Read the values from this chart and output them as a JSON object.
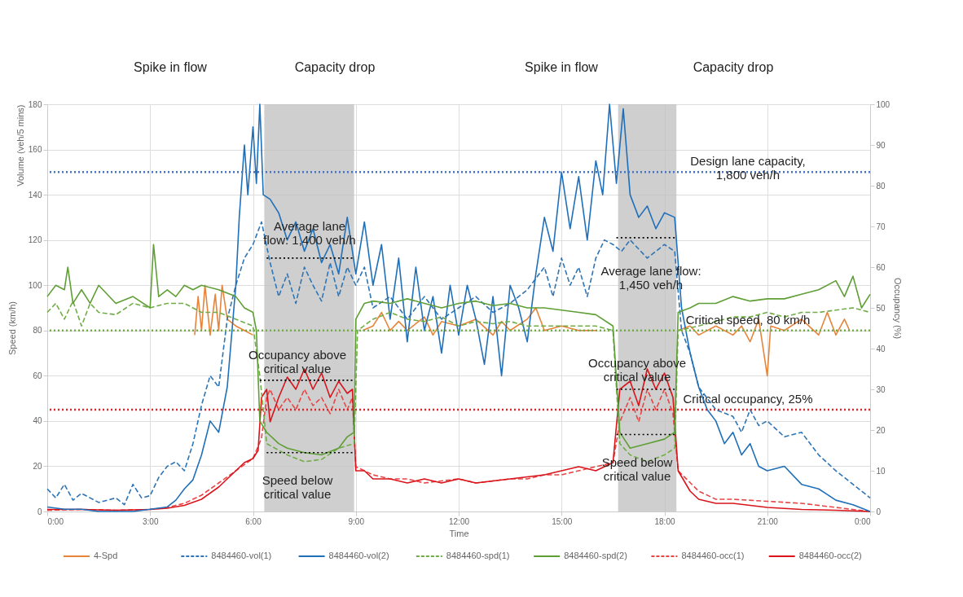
{
  "chart_data": {
    "type": "line",
    "xlabel": "Time",
    "ylabel": "Volume (veh/5 mins)",
    "y2label": "Occupancy (%)",
    "xlim": [
      0,
      24
    ],
    "xticks": [
      {
        "value": 0,
        "label": "0:00"
      },
      {
        "value": 3,
        "label": "3:00"
      },
      {
        "value": 6,
        "label": "6:00"
      },
      {
        "value": 9,
        "label": "9:00"
      },
      {
        "value": 12,
        "label": "12:00"
      },
      {
        "value": 15,
        "label": "15:00"
      },
      {
        "value": 18,
        "label": "18:00"
      },
      {
        "value": 21,
        "label": "21:00"
      },
      {
        "value": 24,
        "label": "0:00"
      }
    ],
    "ylim": [
      0,
      180
    ],
    "yticks": [
      0,
      20,
      40,
      60,
      80,
      100,
      120,
      140,
      160,
      180
    ],
    "y2lim": [
      0,
      100
    ],
    "y2ticks": [
      0,
      10,
      20,
      30,
      40,
      50,
      60,
      70,
      80,
      90,
      100
    ],
    "grid": true,
    "legend": "bottom",
    "series": [
      {
        "name": "4-Spd",
        "color": "#e8843a",
        "line_style": "solid",
        "x": [
          4.3,
          4.4,
          4.5,
          4.6,
          4.75,
          4.9,
          5,
          5.1,
          5.25,
          5.5,
          5.75,
          6,
          6.05,
          9.15,
          9.2,
          9.5,
          9.75,
          10,
          10.25,
          10.5,
          11,
          11.25,
          11.5,
          12,
          12.5,
          13,
          13.25,
          13.5,
          14,
          14.25,
          14.5,
          15,
          15.5,
          16,
          16.05,
          18.35,
          18.4,
          18.75,
          19,
          19.5,
          20,
          20.25,
          20.5,
          20.75,
          21,
          21.1,
          21.5,
          22,
          22.5,
          22.75,
          23,
          23.25,
          23.4
        ],
        "values": [
          78,
          95,
          80,
          100,
          78,
          96,
          80,
          100,
          85,
          82,
          80,
          78,
          null,
          null,
          80,
          82,
          88,
          80,
          84,
          80,
          86,
          78,
          84,
          82,
          85,
          78,
          84,
          80,
          85,
          90,
          80,
          82,
          80,
          80,
          null,
          null,
          80,
          82,
          78,
          82,
          78,
          82,
          75,
          85,
          60,
          82,
          80,
          85,
          78,
          88,
          78,
          85,
          80
        ]
      },
      {
        "name": "8484460-vol(1)",
        "color": "#2e75b6",
        "line_style": "dashed",
        "x": [
          0,
          0.25,
          0.5,
          0.75,
          1,
          1.5,
          2,
          2.25,
          2.5,
          2.75,
          3,
          3.25,
          3.5,
          3.75,
          4,
          4.25,
          4.5,
          4.75,
          5,
          5.25,
          5.5,
          5.75,
          6,
          6.25,
          6.5,
          6.75,
          7,
          7.25,
          7.5,
          7.75,
          8,
          8.25,
          8.5,
          8.75,
          9,
          9.25,
          9.5,
          10,
          10.5,
          11,
          11.5,
          12,
          12.5,
          13,
          13.5,
          14,
          14.5,
          14.75,
          15,
          15.25,
          15.5,
          15.75,
          16,
          16.25,
          16.5,
          16.75,
          17,
          17.5,
          18,
          18.3,
          18.5,
          18.75,
          19,
          19.25,
          19.5,
          20,
          20.25,
          20.5,
          20.75,
          21,
          21.5,
          22,
          22.5,
          23,
          23.5,
          24
        ],
        "values": [
          10,
          6,
          12,
          5,
          8,
          4,
          6,
          3,
          12,
          6,
          7,
          15,
          20,
          22,
          18,
          30,
          47,
          60,
          55,
          85,
          100,
          112,
          118,
          128,
          110,
          95,
          105,
          92,
          108,
          100,
          93,
          110,
          95,
          108,
          100,
          108,
          90,
          95,
          85,
          95,
          85,
          90,
          95,
          88,
          92,
          98,
          108,
          95,
          112,
          100,
          108,
          95,
          112,
          120,
          118,
          115,
          120,
          112,
          118,
          115,
          80,
          70,
          55,
          50,
          45,
          42,
          35,
          45,
          38,
          40,
          33,
          35,
          25,
          18,
          12,
          6
        ]
      },
      {
        "name": "8484460-vol(2)",
        "color": "#1f6fb9",
        "line_style": "solid",
        "x": [
          0,
          0.5,
          1,
          1.5,
          2,
          2.5,
          3,
          3.5,
          3.75,
          4,
          4.25,
          4.5,
          4.75,
          5,
          5.25,
          5.5,
          5.6,
          5.75,
          5.85,
          6,
          6.1,
          6.2,
          6.3,
          6.5,
          6.75,
          7,
          7.25,
          7.5,
          7.75,
          8,
          8.25,
          8.5,
          8.75,
          9,
          9.25,
          9.5,
          9.75,
          10,
          10.25,
          10.5,
          10.75,
          11,
          11.25,
          11.5,
          11.75,
          12,
          12.25,
          12.5,
          12.75,
          13,
          13.25,
          13.5,
          13.75,
          14,
          14.25,
          14.5,
          14.75,
          15,
          15.25,
          15.5,
          15.75,
          16,
          16.2,
          16.4,
          16.6,
          16.8,
          17,
          17.25,
          17.5,
          17.75,
          18,
          18.3,
          18.5,
          18.75,
          19,
          19.25,
          19.5,
          19.75,
          20,
          20.25,
          20.5,
          20.75,
          21,
          21.5,
          22,
          22.5,
          23,
          23.5,
          24
        ],
        "values": [
          2,
          1,
          1,
          0,
          0,
          0,
          1,
          2,
          5,
          10,
          14,
          25,
          40,
          35,
          55,
          100,
          130,
          162,
          140,
          170,
          145,
          180,
          140,
          138,
          132,
          120,
          128,
          115,
          125,
          110,
          118,
          105,
          130,
          105,
          128,
          100,
          118,
          85,
          112,
          75,
          108,
          80,
          95,
          70,
          100,
          78,
          100,
          85,
          65,
          95,
          60,
          100,
          90,
          75,
          105,
          130,
          115,
          150,
          125,
          148,
          120,
          155,
          140,
          180,
          145,
          178,
          140,
          130,
          135,
          125,
          132,
          130,
          90,
          70,
          55,
          45,
          40,
          30,
          35,
          25,
          30,
          20,
          18,
          20,
          12,
          10,
          5,
          3,
          0
        ]
      },
      {
        "name": "8484460-spd(1)",
        "color": "#70ad47",
        "line_style": "dashed",
        "x": [
          0,
          0.25,
          0.5,
          0.75,
          1,
          1.25,
          1.5,
          2,
          2.5,
          3,
          3.5,
          4,
          4.5,
          5,
          5.5,
          6,
          6.2,
          6.4,
          7,
          7.5,
          8,
          8.5,
          8.95,
          9.05,
          9.5,
          10,
          10.5,
          11,
          11.5,
          12,
          12.5,
          13,
          13.5,
          14,
          14.5,
          15,
          15.5,
          16,
          16.5,
          16.7,
          17,
          17.5,
          18,
          18.3,
          18.4,
          19,
          19.5,
          20,
          20.5,
          21,
          21.5,
          22,
          22.5,
          23,
          23.5,
          24
        ],
        "values": [
          88,
          92,
          85,
          93,
          82,
          92,
          88,
          87,
          92,
          90,
          92,
          92,
          88,
          88,
          85,
          82,
          60,
          30,
          25,
          22,
          23,
          28,
          30,
          80,
          85,
          88,
          85,
          84,
          86,
          82,
          84,
          83,
          84,
          82,
          82,
          82,
          82,
          82,
          80,
          30,
          25,
          22,
          25,
          28,
          80,
          82,
          84,
          86,
          86,
          88,
          86,
          88,
          88,
          89,
          90,
          88
        ]
      },
      {
        "name": "8484460-spd(2)",
        "color": "#5e9e35",
        "line_style": "solid",
        "x": [
          0,
          0.25,
          0.5,
          0.6,
          0.75,
          1,
          1.25,
          1.5,
          2,
          2.5,
          3,
          3.1,
          3.25,
          3.5,
          3.75,
          4,
          4.25,
          4.5,
          5,
          5.5,
          5.75,
          6,
          6.1,
          6.2,
          6.4,
          6.75,
          7,
          7.5,
          8,
          8.5,
          8.75,
          8.95,
          9,
          9.25,
          9.5,
          10,
          10.5,
          11,
          11.5,
          12,
          12.5,
          13,
          13.5,
          14,
          14.5,
          15,
          15.5,
          16,
          16.5,
          16.7,
          17,
          17.5,
          18,
          18.3,
          18.4,
          18.75,
          19,
          19.5,
          20,
          20.5,
          21,
          21.5,
          22,
          22.5,
          23,
          23.25,
          23.5,
          23.75,
          24
        ],
        "values": [
          95,
          100,
          98,
          108,
          92,
          98,
          92,
          100,
          92,
          95,
          90,
          118,
          95,
          98,
          95,
          100,
          98,
          100,
          98,
          95,
          90,
          88,
          80,
          40,
          35,
          30,
          28,
          26,
          25,
          28,
          33,
          35,
          85,
          92,
          93,
          92,
          94,
          92,
          90,
          92,
          93,
          91,
          92,
          90,
          90,
          89,
          88,
          87,
          82,
          35,
          28,
          30,
          32,
          35,
          88,
          90,
          92,
          92,
          95,
          93,
          94,
          94,
          96,
          98,
          102,
          95,
          104,
          90,
          96
        ]
      },
      {
        "name": "8484460-occ(1)",
        "color": "#e84545",
        "line_style": "dashed",
        "axis": "y2",
        "x": [
          0,
          1,
          2,
          3,
          3.5,
          4,
          4.5,
          5,
          5.5,
          6,
          6.25,
          6.4,
          6.5,
          6.75,
          7,
          7.25,
          7.5,
          7.75,
          8,
          8.25,
          8.5,
          8.75,
          8.9,
          9,
          9.5,
          10,
          10.5,
          11,
          11.5,
          12,
          12.5,
          13,
          13.5,
          14,
          14.5,
          15,
          15.5,
          16,
          16.5,
          16.7,
          17,
          17.25,
          17.5,
          17.75,
          18,
          18.25,
          18.4,
          19,
          19.5,
          20,
          21,
          22,
          23,
          24
        ],
        "values": [
          0.3,
          0.5,
          0.3,
          0.5,
          1,
          2,
          4,
          7,
          10,
          13,
          18,
          28,
          30,
          25,
          28,
          25,
          30,
          26,
          28,
          24,
          30,
          25,
          28,
          11,
          9,
          8,
          8,
          7,
          7.5,
          8,
          7,
          7.5,
          8,
          8,
          9,
          9,
          10,
          11,
          12,
          22,
          28,
          22,
          30,
          25,
          30,
          24,
          10,
          5,
          3,
          3,
          2.5,
          2,
          1,
          0
        ]
      },
      {
        "name": "8484460-occ(2)",
        "color": "#d9141b",
        "line_style": "solid",
        "axis": "y2",
        "x": [
          0,
          1,
          2,
          3,
          3.5,
          4,
          4.5,
          5,
          5.5,
          5.75,
          6,
          6.15,
          6.25,
          6.4,
          6.5,
          6.75,
          7,
          7.25,
          7.5,
          7.75,
          8,
          8.25,
          8.5,
          8.75,
          8.9,
          9,
          9.25,
          9.5,
          10,
          10.5,
          11,
          11.5,
          12,
          12.5,
          13,
          13.5,
          14,
          14.5,
          15,
          15.5,
          16,
          16.5,
          16.7,
          17,
          17.25,
          17.5,
          17.75,
          18,
          18.25,
          18.4,
          18.75,
          19,
          19.5,
          20,
          21,
          22,
          23,
          24
        ],
        "values": [
          0.5,
          0.5,
          0.3,
          0.5,
          0.8,
          1.5,
          3,
          6,
          10,
          12,
          13,
          15,
          28,
          30,
          22,
          28,
          33,
          30,
          35,
          30,
          34,
          28,
          32,
          29,
          30,
          10,
          10,
          8,
          8,
          7,
          8,
          7,
          8,
          7,
          7.5,
          8,
          8.5,
          9,
          10,
          11,
          10,
          12,
          30,
          32,
          26,
          35,
          30,
          34,
          28,
          10,
          5,
          3,
          2,
          2,
          1,
          0.5,
          0.3,
          0
        ]
      },
      {
        "color": "#000000",
        "line_style": "dotted",
        "x": [
          6.4,
          8.9
        ],
        "values": [
          112,
          112
        ]
      },
      {
        "color": "#000000",
        "line_style": "dotted",
        "x": [
          6.2,
          8.9
        ],
        "values": [
          58,
          58
        ]
      },
      {
        "color": "#000000",
        "line_style": "dotted",
        "x": [
          6.4,
          8.9
        ],
        "values": [
          26,
          26
        ]
      },
      {
        "color": "#000000",
        "line_style": "dotted",
        "x": [
          16.6,
          18.3
        ],
        "values": [
          121,
          121
        ]
      },
      {
        "color": "#000000",
        "line_style": "dotted",
        "x": [
          16.6,
          18.3
        ],
        "values": [
          54,
          54
        ]
      },
      {
        "color": "#000000",
        "line_style": "dotted",
        "x": [
          16.6,
          18.3
        ],
        "values": [
          34,
          34
        ]
      }
    ],
    "bands": [
      {
        "axis": "x",
        "from": 6.33,
        "to": 8.95,
        "color": "#bfbfbf"
      },
      {
        "axis": "x",
        "from": 16.65,
        "to": 18.35,
        "color": "#bfbfbf"
      }
    ],
    "ref_lines": [
      {
        "axis": "y",
        "value": 150,
        "label": "Design lane capacity,\n1,800 veh/h",
        "color": "#4472c4",
        "line_style": "dotted"
      },
      {
        "axis": "y",
        "value": 80,
        "label": "Critical speed, 80 km/h",
        "color": "#70ad47",
        "line_style": "dotted"
      },
      {
        "axis": "y2",
        "value": 25,
        "label": "Critical occupancy, 25%",
        "color": "#e0242a",
        "line_style": "dotted"
      }
    ],
    "annotations": [
      "Speed (km/h)",
      "Spike in flow",
      "Capacity drop",
      "Spike in flow",
      "Capacity drop",
      "Average lane\nflow: 1,400 veh/h",
      "Occupancy above\ncritical value",
      "Speed below\ncritical value",
      "Average lane flow:\n1,450 veh/h",
      "Occupancy above\ncritical value",
      "Speed below\ncritical value"
    ]
  }
}
